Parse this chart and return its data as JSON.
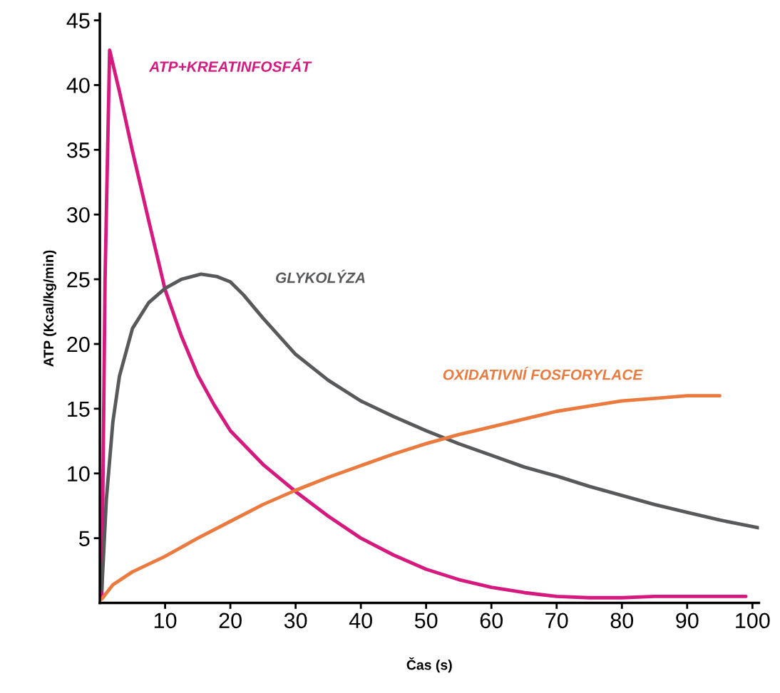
{
  "chart_data": {
    "type": "line",
    "xlabel": "Čas (s)",
    "ylabel": "ATP (Kcal/kg/min)",
    "xlim": [
      0,
      101
    ],
    "ylim": [
      0,
      45.5
    ],
    "xticks": [
      10,
      20,
      30,
      40,
      50,
      60,
      70,
      80,
      90,
      100
    ],
    "yticks": [
      5,
      10,
      15,
      20,
      25,
      30,
      35,
      40,
      45
    ],
    "grid": false,
    "legend": false,
    "marker": "none",
    "line_style": "solid",
    "series": [
      {
        "name": "ATP+KREATINFOSFÁT",
        "color": "#d6197e",
        "x": [
          0.3,
          0.8,
          1.5,
          3,
          5,
          7.5,
          10,
          12.5,
          15,
          17.5,
          20,
          25,
          30,
          35,
          40,
          45,
          50,
          55,
          60,
          65,
          70,
          75,
          77,
          80,
          85,
          90,
          95,
          99
        ],
        "values": [
          0.5,
          25,
          42.7,
          39.5,
          34.9,
          29.5,
          24.2,
          20.6,
          17.6,
          15.3,
          13.3,
          10.7,
          8.6,
          6.7,
          5.0,
          3.7,
          2.6,
          1.8,
          1.2,
          0.8,
          0.5,
          0.4,
          0.4,
          0.4,
          0.5,
          0.5,
          0.5,
          0.5
        ]
      },
      {
        "name": "GLYKOLÝZA",
        "color": "#58595b",
        "x": [
          0.3,
          1,
          2,
          3,
          5,
          7.5,
          10,
          12.5,
          15.5,
          18,
          20,
          22,
          25,
          30,
          35,
          40,
          45,
          50,
          55,
          60,
          65,
          70,
          75,
          80,
          85,
          90,
          95,
          101
        ],
        "values": [
          1,
          8,
          14,
          17.5,
          21.2,
          23.2,
          24.3,
          25,
          25.4,
          25.2,
          24.8,
          23.8,
          22,
          19.2,
          17.2,
          15.6,
          14.4,
          13.3,
          12.3,
          11.4,
          10.5,
          9.8,
          9.0,
          8.3,
          7.6,
          7.0,
          6.4,
          5.8
        ]
      },
      {
        "name": "OXIDATIVNÍ FOSFORYLACE",
        "color": "#eb7a3e",
        "x": [
          0.3,
          2,
          5,
          10,
          15,
          20,
          25,
          30,
          35,
          40,
          45,
          50,
          55,
          60,
          65,
          70,
          75,
          80,
          85,
          90,
          95
        ],
        "values": [
          0.3,
          1.4,
          2.4,
          3.6,
          5.0,
          6.3,
          7.6,
          8.7,
          9.7,
          10.6,
          11.5,
          12.3,
          13.0,
          13.6,
          14.2,
          14.8,
          15.2,
          15.6,
          15.8,
          16.0,
          16.0
        ]
      }
    ]
  }
}
